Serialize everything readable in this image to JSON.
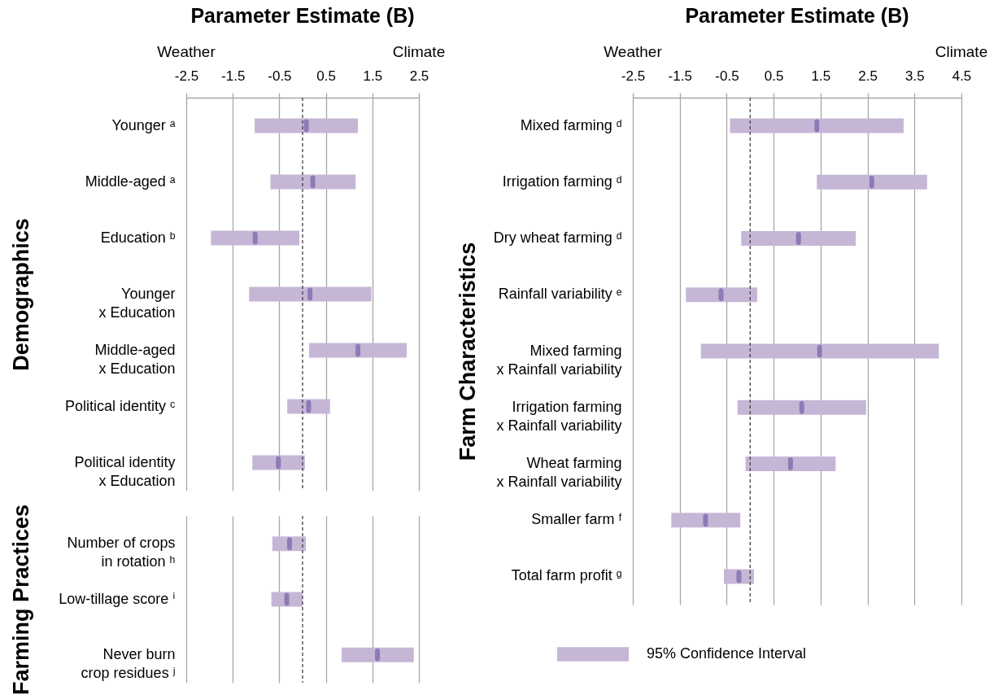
{
  "chart_data": [
    {
      "type": "bar",
      "orientation": "horizontal",
      "title": "Parameter Estimate (B)",
      "ylabel": "Demographics",
      "annotations": [
        "Weather",
        "Climate"
      ],
      "categories": [
        "Younger ᵃ",
        "Middle-aged ᵃ",
        "Education ᵇ",
        "Younger\nx Education",
        "Middle-aged\nx Education",
        "Political identity ᶜ",
        "Political identity\nx Education"
      ],
      "series": [
        {
          "color": "#c6b6d6",
          "base": [
            -1.03,
            -0.69,
            -1.97,
            -1.15,
            0.14,
            -0.33,
            -1.08
          ],
          "values": [
            2.22,
            1.83,
            1.9,
            2.63,
            2.1,
            0.92,
            1.13
          ]
        },
        {
          "type": "scatter",
          "color": "#8e7ab5",
          "values": [
            0.08,
            0.22,
            -1.02,
            0.16,
            1.19,
            0.13,
            -0.52
          ]
        }
      ],
      "xlim": [
        -2.5,
        2.5
      ],
      "xticks": [
        -2.5,
        -1.5,
        -0.5,
        0.5,
        1.5,
        2.5
      ],
      "grid": "x",
      "ref_lines": [
        {
          "axis": "x",
          "value": 0,
          "line_style": "dashed",
          "color": "#404040"
        }
      ]
    },
    {
      "type": "bar",
      "orientation": "horizontal",
      "ylabel": "Farming Practices",
      "tick_labels": "y",
      "categories": [
        "Number of crops\nin rotation ʰ",
        "Low-tillage score ⁱ",
        "Never burn\ncrop residues ʲ"
      ],
      "series": [
        {
          "color": "#c6b6d6",
          "base": [
            -0.65,
            -0.67,
            0.84
          ],
          "values": [
            0.72,
            0.67,
            1.55
          ]
        },
        {
          "type": "scatter",
          "color": "#8e7ab5",
          "values": [
            -0.28,
            -0.34,
            1.61
          ]
        }
      ],
      "xlim": [
        -2.5,
        2.5
      ],
      "xticks": [
        -2.5,
        -1.5,
        -0.5,
        0.5,
        1.5,
        2.5
      ],
      "grid": "x",
      "ref_lines": [
        {
          "axis": "x",
          "value": 0,
          "line_style": "dashed",
          "color": "#404040"
        }
      ]
    },
    {
      "type": "bar",
      "orientation": "horizontal",
      "title": "Parameter Estimate (B)",
      "ylabel": "Farm Characteristics",
      "annotations": [
        "Weather",
        "Climate"
      ],
      "categories": [
        "Mixed farming ᵈ",
        "Irrigation farming ᵈ",
        "Dry wheat farming ᵈ",
        "Rainfall variability ᵉ",
        "Mixed farming\nx Rainfall variability",
        "Irrigation farming\nx Rainfall variability",
        "Wheat farming\nx Rainfall variability",
        "Smaller farm ᶠ",
        "Total farm profit ᵍ"
      ],
      "series": [
        {
          "name": "95% Confidence Interval",
          "color": "#c6b6d6",
          "base": [
            -0.43,
            1.42,
            -0.19,
            -1.37,
            -1.05,
            -0.27,
            -0.1,
            -1.68,
            -0.56
          ],
          "values": [
            3.7,
            2.35,
            2.44,
            1.52,
            5.07,
            2.74,
            1.92,
            1.47,
            0.64
          ]
        },
        {
          "type": "scatter",
          "color": "#8e7ab5",
          "values": [
            1.42,
            2.59,
            1.03,
            -0.62,
            1.48,
            1.1,
            0.86,
            -0.95,
            -0.24
          ]
        }
      ],
      "xlim": [
        -2.5,
        4.5
      ],
      "xticks": [
        -2.5,
        -1.5,
        -0.5,
        0.5,
        1.5,
        2.5,
        3.5,
        4.5
      ],
      "grid": "x",
      "legend": "bottom",
      "ref_lines": [
        {
          "axis": "x",
          "value": 0,
          "line_style": "dashed",
          "color": "#404040"
        }
      ]
    }
  ]
}
